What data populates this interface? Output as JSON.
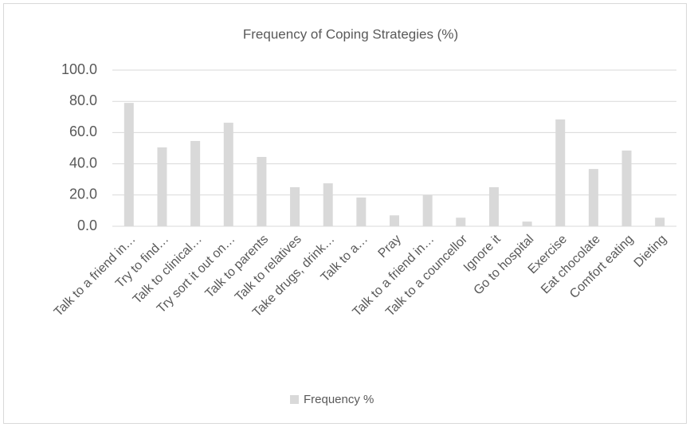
{
  "chart_data": {
    "type": "bar",
    "title": "Frequency of Coping Strategies (%)",
    "categories": [
      "Talk to a friend in…",
      "Try to find…",
      "Talk to clinical…",
      "Try sort it out on…",
      "Talk to parents",
      "Talk to relatives",
      "Take drugs, drink…",
      "Talk to a…",
      "Pray",
      "Talk to a friend in…",
      "Talk to a councellor",
      "Ignore it",
      "Go to hospital",
      "Exercise",
      "Eat chocolate",
      "Comfort eating",
      "Dieting"
    ],
    "series": [
      {
        "name": "Frequency %",
        "color": "#d9d9d9",
        "values": [
          79,
          50.5,
          54.6,
          66.3,
          44.4,
          25,
          27.5,
          18.4,
          7,
          20,
          5.5,
          25,
          3,
          68.4,
          36.7,
          48.5,
          5.5
        ]
      }
    ],
    "ylim": [
      0,
      100
    ],
    "yticks": [
      {
        "value": 0,
        "label": "0.0"
      },
      {
        "value": 20,
        "label": "20.0"
      },
      {
        "value": 40,
        "label": "40.0"
      },
      {
        "value": 60,
        "label": "60.0"
      },
      {
        "value": 80,
        "label": "80.0"
      },
      {
        "value": 100,
        "label": "100.0"
      }
    ],
    "grid": true,
    "legend": "bottom"
  }
}
